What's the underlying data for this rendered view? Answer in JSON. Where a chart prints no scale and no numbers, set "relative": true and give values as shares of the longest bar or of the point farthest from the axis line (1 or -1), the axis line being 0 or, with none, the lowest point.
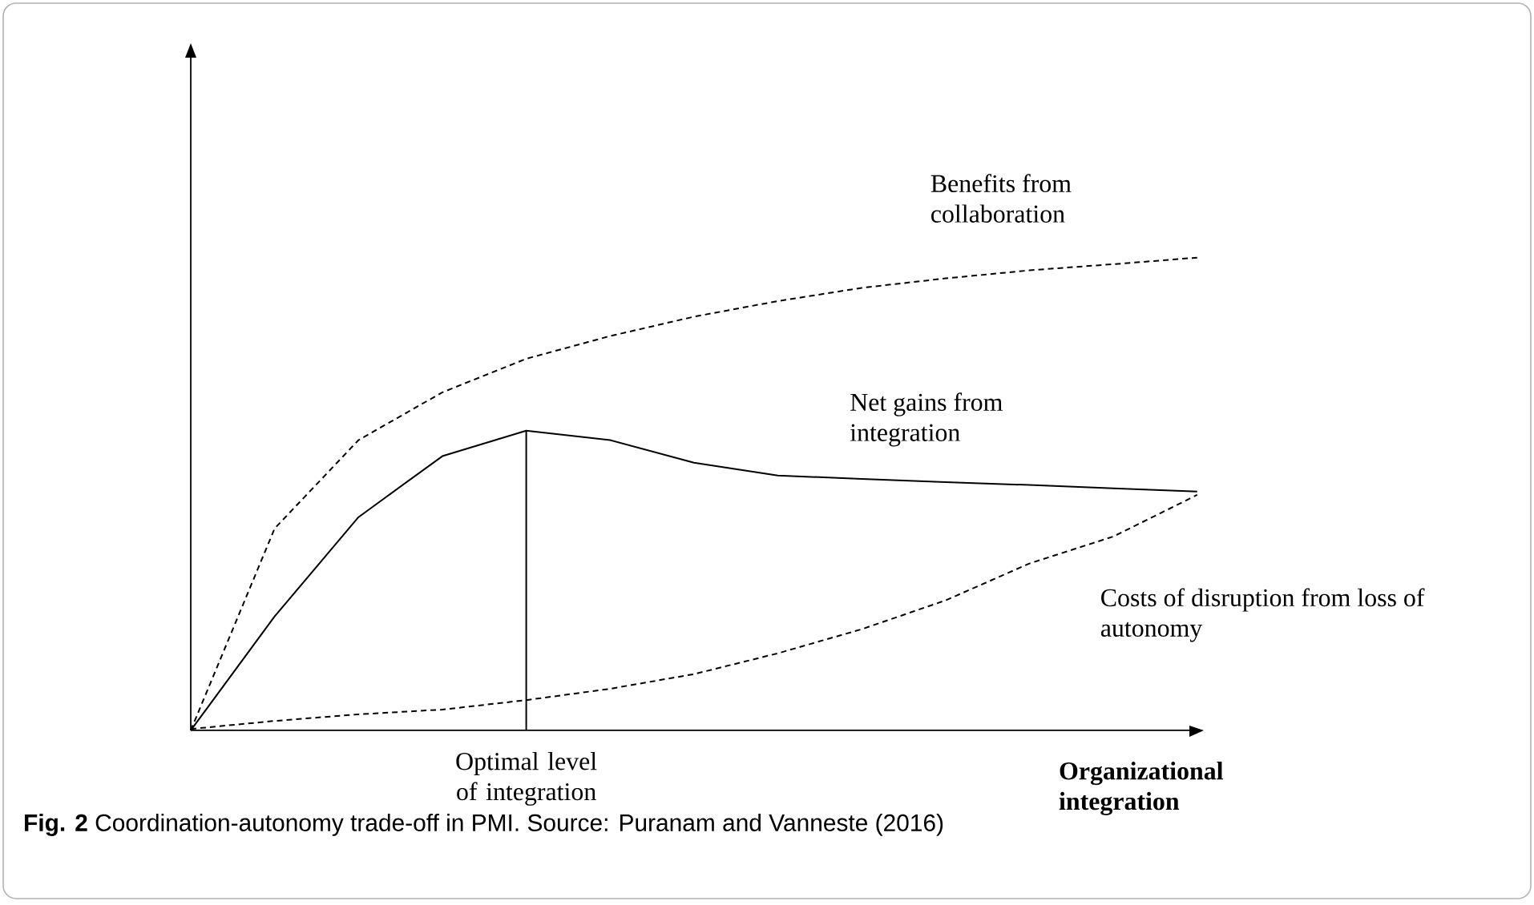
{
  "chart_data": {
    "type": "line",
    "relative": true,
    "xlabel": "Organizational integration",
    "tick_labels": false,
    "marker": "none",
    "categories": [
      null,
      null,
      null,
      null,
      null,
      null,
      null,
      null,
      null,
      null,
      null,
      null,
      null
    ],
    "series": [
      {
        "name": "Benefits from collaboration",
        "color": "#000000",
        "line_style": "dashed",
        "values": [
          0,
          0.427,
          0.614,
          0.715,
          0.786,
          0.834,
          0.875,
          0.908,
          0.936,
          0.956,
          0.973,
          0.986,
          1
        ]
      },
      {
        "name": "Net gains from integration",
        "color": "#000000",
        "line_style": "solid",
        "values": [
          0,
          0.241,
          0.451,
          0.58,
          0.634,
          0.614,
          0.566,
          0.539,
          0.532,
          0.525,
          0.519,
          0.512,
          0.505
        ]
      },
      {
        "name": "Costs of disruption from loss of autonomy",
        "color": "#000000",
        "line_style": "dashed",
        "values": [
          0.003,
          0.02,
          0.034,
          0.044,
          0.064,
          0.088,
          0.119,
          0.163,
          0.214,
          0.275,
          0.353,
          0.41,
          0.498
        ]
      }
    ],
    "annotations": [
      "Optimal level of integration",
      "**Fig. 2** Coordination-autonomy trade-off in PMI. Source: Puranam and Vanneste (2016)"
    ]
  }
}
